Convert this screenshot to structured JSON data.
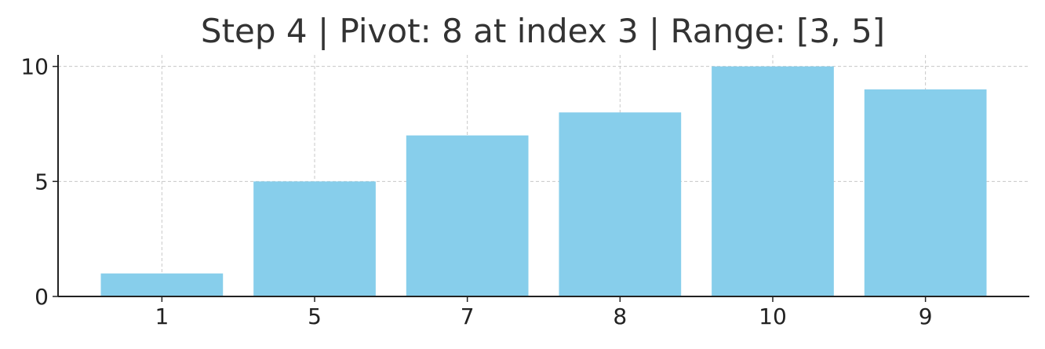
{
  "chart_data": {
    "type": "bar",
    "title": "Step 4 | Pivot: 8 at index 3 | Range: [3, 5]",
    "xlabel": "",
    "ylabel": "",
    "categories": [
      "1",
      "5",
      "7",
      "8",
      "10",
      "9"
    ],
    "values": [
      1,
      5,
      7,
      8,
      10,
      9
    ],
    "ylim": [
      0,
      10.5
    ],
    "yticks": [
      0,
      5,
      10
    ],
    "grid": true,
    "legend": "none",
    "bar_color": "#87CEEB",
    "axis_color": "#222222",
    "grid_color": "#c8c8c8",
    "text_color": "#333333"
  }
}
